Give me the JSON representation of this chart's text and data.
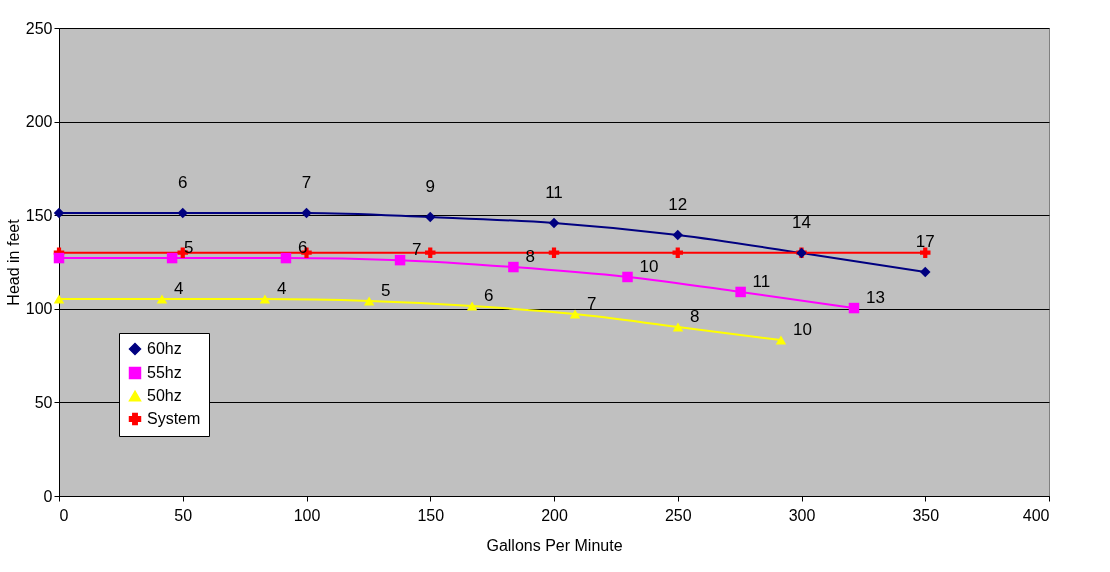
{
  "chart_data": {
    "type": "line",
    "xlabel": "Gallons Per Minute",
    "ylabel": "Head in feet",
    "xlim": [
      0,
      400
    ],
    "xticks": [
      0,
      50,
      100,
      150,
      200,
      250,
      300,
      350,
      400
    ],
    "ylim": [
      0,
      250
    ],
    "yticks": [
      0,
      50,
      100,
      150,
      200,
      250
    ],
    "grid": "y",
    "legend": "bottom left",
    "series": [
      {
        "name": "60hz",
        "color": "#000080",
        "marker": "diamond",
        "x": [
          0,
          50,
          100,
          150,
          200,
          250,
          300,
          350
        ],
        "values": [
          151.2,
          151.2,
          151.2,
          149,
          145.8,
          139.4,
          129.8,
          119.7
        ]
      },
      {
        "name": "55hz",
        "color": "#ff00ff",
        "marker": "square",
        "x": [
          0,
          45.7,
          91.7,
          137.8,
          183.6,
          229.7,
          275.4,
          321.2
        ],
        "values": [
          127.1,
          127.1,
          127.1,
          126,
          122.3,
          117,
          109,
          100.4
        ]
      },
      {
        "name": "50hz",
        "color": "#ffff00",
        "marker": "triangle",
        "x": [
          0,
          41.6,
          83.2,
          125.3,
          166.9,
          208.5,
          250.1,
          291.7
        ],
        "values": [
          105.2,
          105.2,
          105.2,
          104.2,
          101.5,
          97.2,
          90.3,
          83.3
        ]
      },
      {
        "name": "System",
        "color": "#ff0000",
        "marker": "cross",
        "x": [
          0,
          50,
          100,
          150,
          200,
          250,
          300,
          350
        ],
        "values": [
          130,
          130,
          130,
          130,
          130,
          130,
          130,
          130
        ]
      }
    ],
    "annotations": [
      {
        "text": "6",
        "x": 50,
        "y": 151.2
      },
      {
        "text": "7",
        "x": 100,
        "y": 151.2
      },
      {
        "text": "9",
        "x": 150,
        "y": 149
      },
      {
        "text": "11",
        "x": 200,
        "y": 145.8
      },
      {
        "text": "12",
        "x": 250,
        "y": 139.4
      },
      {
        "text": "14",
        "x": 300,
        "y": 129.8
      },
      {
        "text": "17",
        "x": 350,
        "y": 119.7
      },
      {
        "text": "5",
        "x": 45.7,
        "y": 127.1
      },
      {
        "text": "6",
        "x": 91.7,
        "y": 127.1
      },
      {
        "text": "7",
        "x": 137.8,
        "y": 126
      },
      {
        "text": "8",
        "x": 183.6,
        "y": 122.3
      },
      {
        "text": "10",
        "x": 229.7,
        "y": 117
      },
      {
        "text": "11",
        "x": 275.4,
        "y": 109
      },
      {
        "text": "13",
        "x": 321.2,
        "y": 100.4
      },
      {
        "text": "4",
        "x": 41.6,
        "y": 105.2
      },
      {
        "text": "4",
        "x": 83.2,
        "y": 105.2
      },
      {
        "text": "5",
        "x": 125.3,
        "y": 104.2
      },
      {
        "text": "6",
        "x": 166.9,
        "y": 101.5
      },
      {
        "text": "7",
        "x": 208.5,
        "y": 97.2
      },
      {
        "text": "8",
        "x": 250.1,
        "y": 90.3
      },
      {
        "text": "10",
        "x": 291.7,
        "y": 83.3
      }
    ]
  }
}
